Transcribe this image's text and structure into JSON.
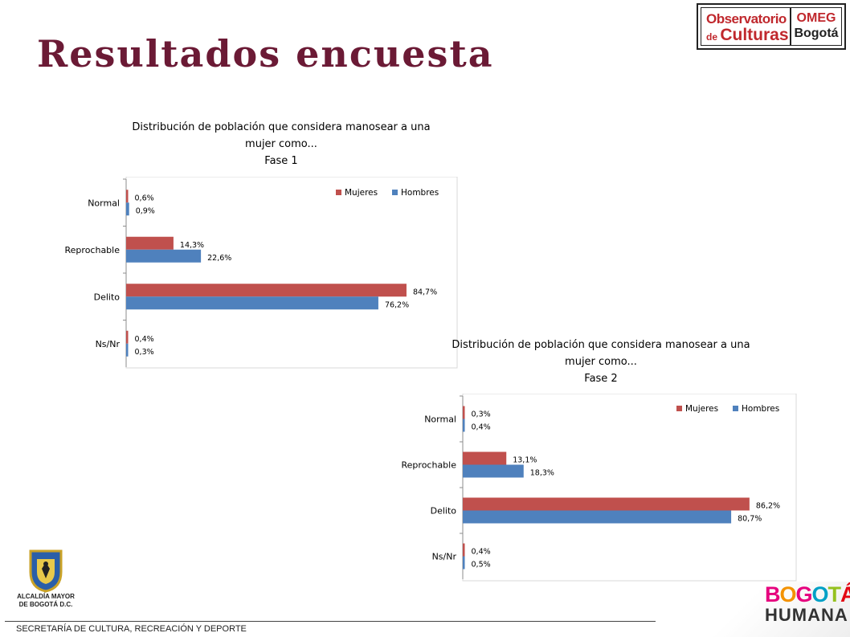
{
  "header": {
    "title": "Resultados encuesta",
    "logo_text": {
      "observatorio": "Observatorio",
      "de": "de",
      "culturas": "Culturas",
      "omeg": "OMEG",
      "bogota": "Bogotá"
    }
  },
  "chart_data": [
    {
      "type": "bar",
      "orientation": "horizontal",
      "title_lines": [
        "Distribución de población que considera manosear a una",
        "mujer como..."
      ],
      "phase": "Fase 1",
      "categories": [
        "Normal",
        "Reprochable",
        "Delito",
        "Ns/Nr"
      ],
      "series": [
        {
          "name": "Mujeres",
          "color": "#c0504d",
          "values": [
            0.6,
            14.3,
            84.7,
            0.4
          ],
          "labels": [
            "0,6%",
            "14,3%",
            "84,7%",
            "0,4%"
          ]
        },
        {
          "name": "Hombres",
          "color": "#4f81bd",
          "values": [
            0.9,
            22.6,
            76.2,
            0.3
          ],
          "labels": [
            "0,9%",
            "22,6%",
            "76,2%",
            "0,3%"
          ]
        }
      ],
      "xlim": [
        0,
        100
      ],
      "legend": "top-right",
      "grid": false
    },
    {
      "type": "bar",
      "orientation": "horizontal",
      "title_lines": [
        "Distribución de población que considera manosear a una",
        "mujer como..."
      ],
      "phase": "Fase 2",
      "categories": [
        "Normal",
        "Reprochable",
        "Delito",
        "Ns/Nr"
      ],
      "series": [
        {
          "name": "Mujeres",
          "color": "#c0504d",
          "values": [
            0.3,
            13.1,
            86.2,
            0.4
          ],
          "labels": [
            "0,3%",
            "13,1%",
            "86,2%",
            "0,4%"
          ]
        },
        {
          "name": "Hombres",
          "color": "#4f81bd",
          "values": [
            0.4,
            18.3,
            80.7,
            0.5
          ],
          "labels": [
            "0,4%",
            "18,3%",
            "80,7%",
            "0,5%"
          ]
        }
      ],
      "xlim": [
        0,
        100
      ],
      "legend": "top-right",
      "grid": false
    }
  ],
  "footer": {
    "alcaldia_line1": "ALCALDÍA MAYOR",
    "alcaldia_line2": "DE BOGOTÁ D.C.",
    "secretaria": "SECRETARÍA DE CULTURA, RECREACIÓN Y DEPORTE",
    "bogota_humana_1": "BOGOTÁ",
    "bogota_humana_2": "HUMANA"
  }
}
